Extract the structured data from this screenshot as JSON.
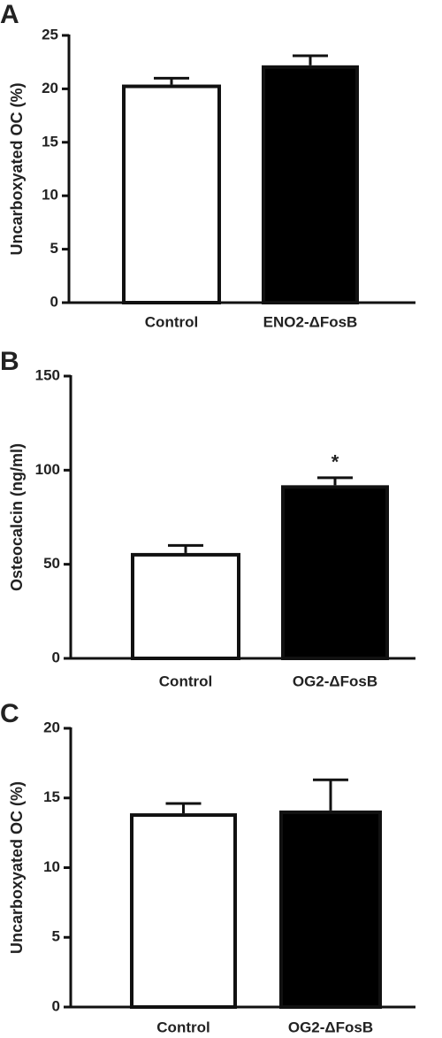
{
  "chart_data": [
    {
      "type": "bar",
      "panel": "A",
      "ylabel": "Uncarboxyated OC (%)",
      "categories": [
        "Control",
        "ENO2-ΔFosB"
      ],
      "values": [
        20.4,
        22.2
      ],
      "errors": [
        0.6,
        0.9
      ],
      "colors": [
        "#ffffff",
        "#000000"
      ],
      "ylim": [
        0,
        25
      ],
      "yticks": [
        0,
        5,
        10,
        15,
        20,
        25
      ]
    },
    {
      "type": "bar",
      "panel": "B",
      "ylabel": "Osteocalcin (ng/ml)",
      "categories": [
        "Control",
        "OG2-ΔFosB"
      ],
      "values": [
        56,
        92
      ],
      "errors": [
        4,
        4
      ],
      "colors": [
        "#ffffff",
        "#000000"
      ],
      "ylim": [
        0,
        150
      ],
      "yticks": [
        0,
        50,
        100,
        150
      ],
      "annotations": [
        {
          "text": "*",
          "category": "OG2-ΔFosB"
        }
      ]
    },
    {
      "type": "bar",
      "panel": "C",
      "ylabel": "Uncarboxyated OC (%)",
      "categories": [
        "Control",
        "OG2-ΔFosB"
      ],
      "values": [
        13.9,
        14.1
      ],
      "errors": [
        0.7,
        2.2
      ],
      "colors": [
        "#ffffff",
        "#000000"
      ],
      "ylim": [
        0,
        20
      ],
      "yticks": [
        0,
        5,
        10,
        15,
        20
      ]
    }
  ]
}
